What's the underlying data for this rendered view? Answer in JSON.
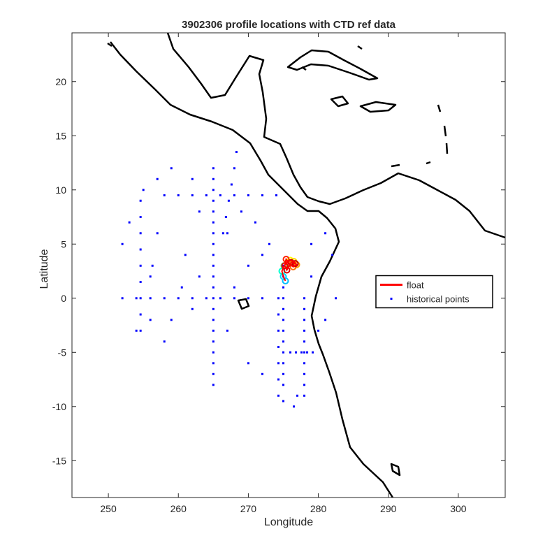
{
  "chart_data": {
    "type": "scatter",
    "title": "3902306 profile locations with CTD ref data",
    "x_label": "Longitude",
    "y_label": "Latitude",
    "xlim": [
      244.8,
      306.7
    ],
    "ylim": [
      -18.4,
      24.5
    ],
    "xticks": [
      250,
      260,
      270,
      280,
      290,
      300
    ],
    "yticks": [
      -15,
      -10,
      -5,
      0,
      5,
      10,
      15,
      20
    ],
    "legend": "east",
    "series": [
      {
        "name": "float",
        "color": "#ff0000",
        "x": [
          275.3,
          275.0,
          274.8,
          275.1,
          275.6,
          276.0,
          276.5,
          276.9,
          276.4,
          275.9,
          275.4,
          275.2,
          275.5,
          276.1,
          276.7
        ],
        "y": [
          1.6,
          2.0,
          2.5,
          3.0,
          3.3,
          3.5,
          3.4,
          3.1,
          2.9,
          3.2,
          3.6,
          3.0,
          2.6,
          3.3,
          3.2
        ],
        "marker_colors": [
          "#00bfff",
          "#00d5ff",
          "#00ffd0",
          "#40ff80",
          "#a0ff40",
          "#ffff00",
          "#ffd000",
          "#ffa000",
          "#ff7000",
          "#ff4000",
          "#ff2000",
          "#ee0000",
          "#dd0000",
          "#cc0000",
          "#c00000"
        ]
      },
      {
        "name": "historical points",
        "color": "#0000ff",
        "x": [
          265,
          265,
          265,
          265,
          265,
          265,
          265,
          265,
          265,
          265,
          265,
          265,
          265,
          265,
          265,
          265,
          265,
          265,
          265,
          265,
          265,
          275,
          275,
          275,
          275,
          275,
          275,
          275,
          275,
          275,
          275,
          275,
          275,
          275,
          274.3,
          274.3,
          274.3,
          274.3,
          274.3,
          274.3,
          274.3,
          278,
          278,
          278,
          278,
          278,
          278,
          278,
          278,
          278,
          278,
          254.6,
          254.6,
          254.6,
          254.6,
          254.6,
          254.6,
          254.6,
          254.6,
          254.6,
          258,
          260,
          262,
          264,
          266,
          268,
          270,
          272,
          274,
          252,
          254,
          256,
          258,
          260,
          262,
          264,
          266,
          268,
          270,
          272,
          276,
          276.8,
          277.6,
          278.4,
          279.2,
          268.3,
          268,
          267.6,
          267.2,
          266.8,
          266.4,
          255,
          257,
          259,
          262,
          263,
          252,
          253,
          257,
          261,
          263,
          267,
          269,
          271,
          273,
          279,
          281,
          282,
          256,
          258,
          262,
          267,
          270,
          272,
          280,
          256,
          259,
          268,
          270,
          272,
          279,
          277,
          276.5,
          281,
          282.5,
          254,
          256.3,
          260.5
        ],
        "y": [
          12,
          11,
          10,
          9,
          8,
          7,
          6,
          5,
          4,
          3,
          2,
          1,
          0,
          -1,
          -2,
          -3,
          -4,
          -5,
          -6,
          -7,
          -8,
          3,
          2,
          1,
          0,
          -1,
          -2,
          -3,
          -4,
          -5,
          -6,
          -7,
          -8,
          -9.5,
          0,
          -1.5,
          -3,
          -4.5,
          -6,
          -7.5,
          -9,
          0,
          -1,
          -2,
          -3,
          -4,
          -5,
          -6,
          -7,
          -8,
          -9,
          9,
          7.5,
          6,
          4.5,
          3,
          1.5,
          0,
          -1.5,
          -3,
          9.5,
          9.5,
          9.5,
          9.5,
          9.5,
          9.5,
          9.5,
          9.5,
          9.5,
          0,
          0,
          0,
          0,
          0,
          0,
          0,
          0,
          0,
          0,
          0,
          -5,
          -5,
          -5,
          -5,
          -5,
          13.5,
          12,
          10.5,
          9,
          7.5,
          6,
          10,
          11,
          12,
          11,
          8,
          5,
          7,
          6,
          4,
          2,
          6,
          8,
          7,
          5,
          5,
          6,
          4,
          -2,
          -4,
          -1,
          -3,
          -6,
          -7,
          -3,
          2,
          -2,
          1,
          3,
          4,
          2,
          -9,
          -10,
          -2,
          0,
          -3,
          3,
          1
        ]
      }
    ]
  }
}
